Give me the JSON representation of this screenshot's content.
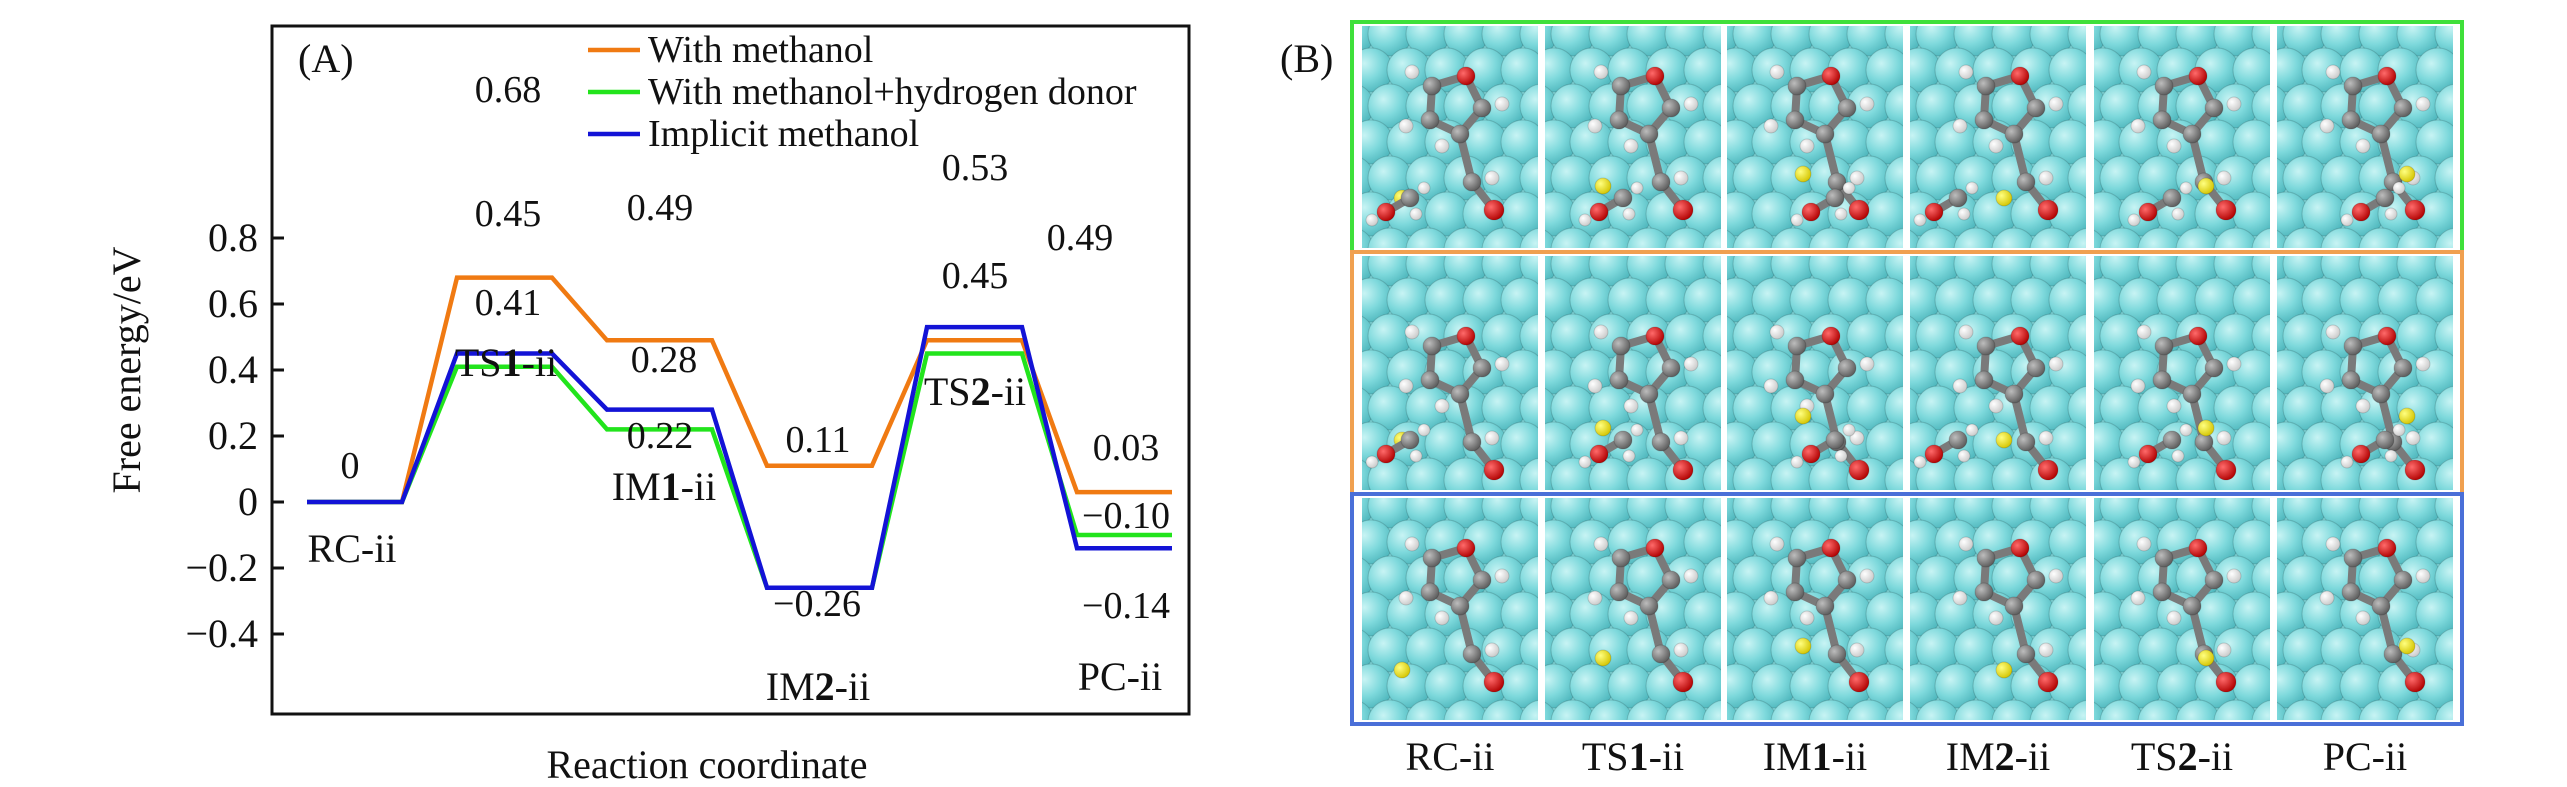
{
  "chart_data": {
    "type": "line",
    "panel_label": "(A)",
    "xlabel": "Reaction coordinate",
    "ylabel": "Free energy/eV",
    "ylim": [
      -0.4,
      0.85
    ],
    "yticks": [
      0.8,
      0.6,
      0.4,
      0.2,
      0,
      -0.2,
      -0.4
    ],
    "ytick_labels": [
      "0.8",
      "0.6",
      "0.4",
      "0.2",
      "0",
      "−0.2",
      "−0.4"
    ],
    "grid": false,
    "legend_position": "top-right",
    "states": [
      {
        "pre": "RC-ii",
        "num": "",
        "post": ""
      },
      {
        "pre": "TS",
        "num": "1",
        "post": "-ii"
      },
      {
        "pre": "IM",
        "num": "1",
        "post": "-ii"
      },
      {
        "pre": "IM",
        "num": "2",
        "post": "-ii"
      },
      {
        "pre": "TS",
        "num": "2",
        "post": "-ii"
      },
      {
        "pre": "PC-ii",
        "num": "",
        "post": ""
      }
    ],
    "series": [
      {
        "name": "With methanol",
        "color": "#f07a12",
        "values": [
          0,
          0.68,
          0.49,
          0.11,
          0.49,
          0.03
        ]
      },
      {
        "name": "With methanol+hydrogen donor",
        "color": "#22e41c",
        "values": [
          0,
          0.41,
          0.22,
          -0.26,
          0.45,
          -0.1
        ]
      },
      {
        "name": "Implicit methanol",
        "color": "#1313d6",
        "values": [
          0,
          0.45,
          0.28,
          -0.26,
          0.53,
          -0.14
        ]
      }
    ],
    "value_labels": [
      "0",
      "0.68",
      "0.45",
      "0.41",
      "0.49",
      "0.28",
      "0.22",
      "0.11",
      "−0.26",
      "0.53",
      "0.45",
      "0.49",
      "0.03",
      "−0.10",
      "−0.14"
    ]
  },
  "panel_b": {
    "panel_label": "(B)",
    "row_frame_colors": [
      "#3fe03a",
      "#f0a050",
      "#4a6fd8"
    ],
    "columns": [
      {
        "pre": "RC-ii",
        "num": "",
        "post": ""
      },
      {
        "pre": "TS",
        "num": "1",
        "post": "-ii"
      },
      {
        "pre": "IM",
        "num": "1",
        "post": "-ii"
      },
      {
        "pre": "IM",
        "num": "2",
        "post": "-ii"
      },
      {
        "pre": "TS",
        "num": "2",
        "post": "-ii"
      },
      {
        "pre": "PC-ii",
        "num": "",
        "post": ""
      }
    ]
  }
}
